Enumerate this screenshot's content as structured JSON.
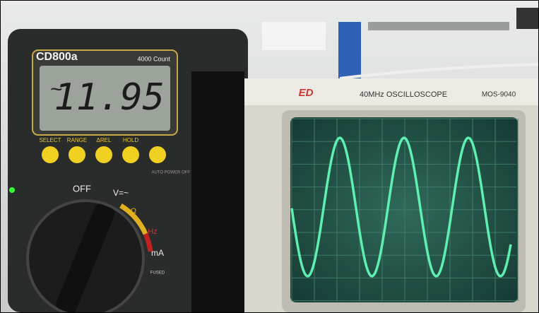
{
  "multimeter": {
    "brand": "CD800a",
    "count": "4000 Count",
    "reading": "11.95",
    "buttons": [
      "SELECT",
      "RANGE",
      "ΔREL",
      "HOLD"
    ],
    "auto_off": "AUTO POWER OFF",
    "dial": [
      "OFF",
      "V=~",
      "Ω",
      "Hz",
      "mA",
      "FUSED"
    ]
  },
  "oscilloscope": {
    "logo": "ED",
    "title": "40MHz OSCILLOSCOPE",
    "model": "MOS-9040"
  }
}
